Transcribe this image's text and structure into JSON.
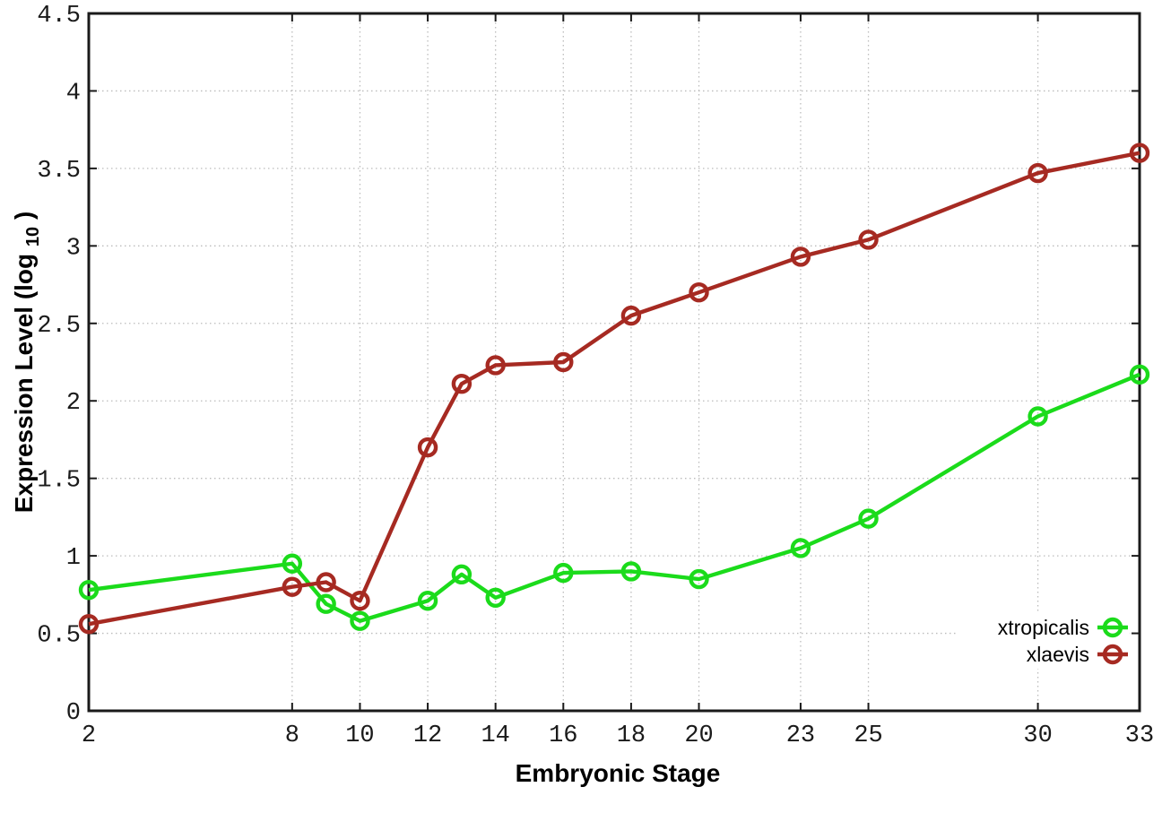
{
  "labels": {
    "x_axis": "Embryonic Stage",
    "y_prefix": "Expression Level (log",
    "y_sub": "10",
    "y_suffix": ")"
  },
  "chart_data": {
    "type": "line",
    "title": "",
    "xlabel": "Embryonic Stage",
    "ylabel": "Expression Level (log10)",
    "x": [
      2,
      8,
      9,
      10,
      12,
      13,
      14,
      16,
      18,
      20,
      23,
      25,
      30,
      33
    ],
    "series": [
      {
        "name": "xtropicalis",
        "color": "#1bdb1b",
        "marker": "open-circle",
        "values": [
          0.78,
          0.95,
          0.69,
          0.58,
          0.71,
          0.88,
          0.73,
          0.89,
          0.9,
          0.85,
          1.05,
          1.24,
          1.9,
          2.17
        ]
      },
      {
        "name": "xlaevis",
        "color": "#a62a22",
        "marker": "open-circle",
        "values": [
          0.56,
          0.8,
          0.83,
          0.71,
          1.7,
          2.11,
          2.23,
          2.25,
          2.55,
          2.7,
          2.93,
          3.04,
          3.47,
          3.6
        ]
      }
    ],
    "x_ticks": [
      2,
      8,
      10,
      12,
      14,
      16,
      18,
      20,
      23,
      25,
      30,
      33
    ],
    "y_ticks": [
      0,
      0.5,
      1,
      1.5,
      2,
      2.5,
      3,
      3.5,
      4,
      4.5
    ],
    "xlim": [
      2,
      33
    ],
    "ylim": [
      0,
      4.5
    ],
    "grid": true,
    "grid_style": "dotted",
    "grid_color": "#bcbcbc",
    "axis_color": "#1a1a1a",
    "background": "#ffffff",
    "legend_position": "inside-bottom-right",
    "legend_opaque": true
  }
}
